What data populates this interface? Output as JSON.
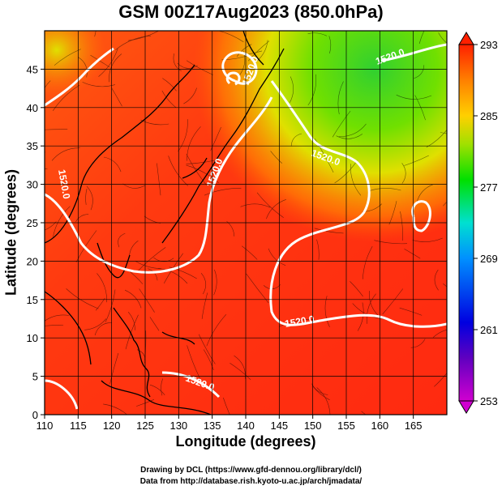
{
  "title": "GSM 00Z17Aug2023 (850.0hPa)",
  "xlabel": "Longitude (degrees)",
  "ylabel": "Latitude  (degrees)",
  "credit_line1": "Drawing by DCL (https://www.gfd-dennou.org/library/dcl/)",
  "credit_line2": "Data from http://database.rish.kyoto-u.ac.jp/arch/jmadata/",
  "chart_data": {
    "type": "heatmap",
    "x_range": [
      110,
      170
    ],
    "y_range": [
      0,
      50
    ],
    "x_ticks": [
      "110",
      "115",
      "120",
      "125",
      "130",
      "135",
      "140",
      "145",
      "150",
      "155",
      "160",
      "165"
    ],
    "y_ticks": [
      "0",
      "5",
      "10",
      "15",
      "20",
      "25",
      "30",
      "35",
      "40",
      "45"
    ],
    "colorbar": {
      "min": 253,
      "max": 293,
      "tick_labels": [
        "293",
        "285",
        "277",
        "269",
        "261",
        "253"
      ],
      "colors": [
        "#d000d0",
        "#6000c0",
        "#0000e0",
        "#0090ff",
        "#00e0d0",
        "#00e000",
        "#a0e000",
        "#ffd000",
        "#ff8000",
        "#ff2000"
      ]
    },
    "contour_labels": [
      "1520.0",
      "1520.0",
      "1520.0",
      "1520.0",
      "1520.0",
      "1520.0",
      "1520.0"
    ],
    "grid": true
  }
}
